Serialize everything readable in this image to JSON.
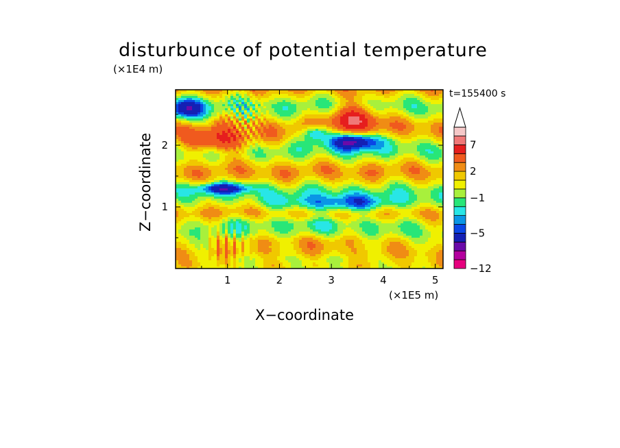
{
  "chart_data": {
    "type": "heatmap",
    "title": "disturbunce of potential temperature",
    "xlabel": "X−coordinate",
    "ylabel": "Z−coordinate",
    "x_unit": "(×1E5 m)",
    "y_unit": "(×1E4 m)",
    "time_label": "t=155400 s",
    "xlim": [
      0,
      5.15
    ],
    "ylim": [
      0,
      2.9
    ],
    "x_ticks": [
      1,
      2,
      3,
      4,
      5
    ],
    "x_tick_labels": [
      "1",
      "2",
      "3",
      "4",
      "5"
    ],
    "y_ticks": [
      1,
      2
    ],
    "y_tick_labels": [
      "1",
      "2"
    ],
    "colorbar": {
      "levels": [
        -12,
        -11,
        -9,
        -7,
        -5,
        -4,
        -3,
        -2,
        -1,
        0,
        1,
        2,
        3,
        5,
        7,
        9,
        11
      ],
      "labels": [
        "−12",
        "−5",
        "−1",
        "2",
        "7"
      ],
      "label_levels": [
        -12,
        -5,
        -1,
        2,
        7
      ],
      "colors": [
        "#e6007e",
        "#b4009e",
        "#6a0aa8",
        "#1420b4",
        "#0a46e6",
        "#0a96e6",
        "#28e6e6",
        "#28e678",
        "#a8f03c",
        "#f0f000",
        "#f0c800",
        "#f08c14",
        "#f05a1e",
        "#e61e1e",
        "#f07878",
        "#f5c8c8",
        "#ffffff"
      ],
      "extend": "max"
    },
    "features": [
      {
        "x": 3.45,
        "z": 2.45,
        "value": 6
      },
      {
        "x": 3.45,
        "z": 2.05,
        "value": -7
      },
      {
        "x": 0.85,
        "z": 2.05,
        "value": 5
      },
      {
        "x": 2.7,
        "z": 2.2,
        "value": -3
      },
      {
        "x": 3.2,
        "z": 1.05,
        "value": -4
      },
      {
        "x": 0.9,
        "z": 1.3,
        "value": -4
      }
    ]
  }
}
